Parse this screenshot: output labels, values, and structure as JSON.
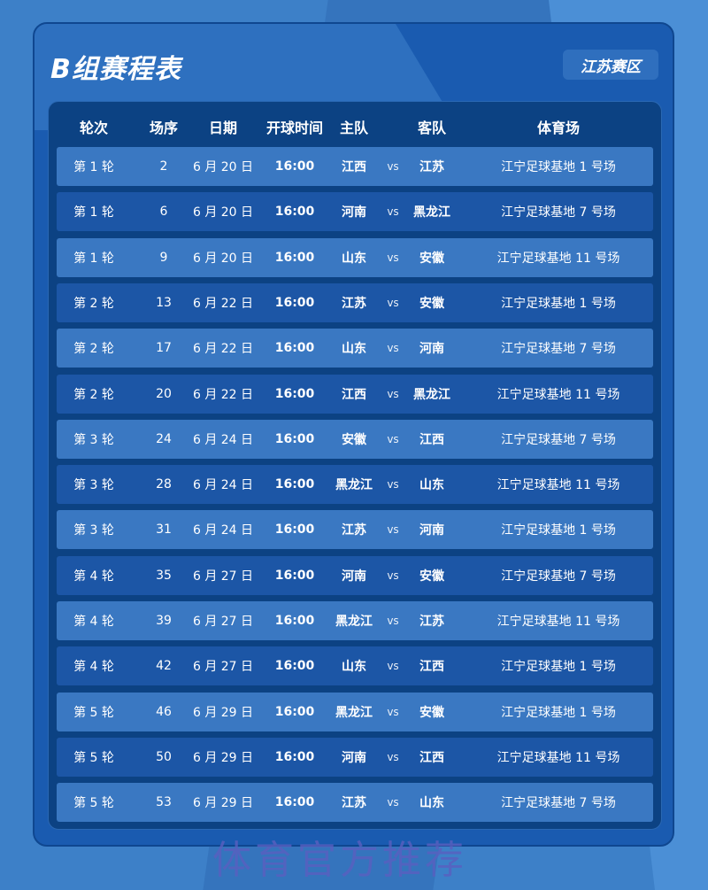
{
  "title": "B组赛程表",
  "region": "江苏赛区",
  "headers": {
    "round": "轮次",
    "seq": "场序",
    "date": "日期",
    "time": "开球时间",
    "home": "主队",
    "away": "客队",
    "venue": "体育场"
  },
  "vs": "vs",
  "rows": [
    [
      "第 1 轮",
      "2",
      "6 月 20 日",
      "16:00",
      "江西",
      "江苏",
      "江宁足球基地 1 号场"
    ],
    [
      "第 1 轮",
      "6",
      "6 月 20 日",
      "16:00",
      "河南",
      "黑龙江",
      "江宁足球基地 7 号场"
    ],
    [
      "第 1 轮",
      "9",
      "6 月 20 日",
      "16:00",
      "山东",
      "安徽",
      "江宁足球基地 11 号场"
    ],
    [
      "第 2 轮",
      "13",
      "6 月 22 日",
      "16:00",
      "江苏",
      "安徽",
      "江宁足球基地 1 号场"
    ],
    [
      "第 2 轮",
      "17",
      "6 月 22 日",
      "16:00",
      "山东",
      "河南",
      "江宁足球基地 7 号场"
    ],
    [
      "第 2 轮",
      "20",
      "6 月 22 日",
      "16:00",
      "江西",
      "黑龙江",
      "江宁足球基地 11 号场"
    ],
    [
      "第 3 轮",
      "24",
      "6 月 24 日",
      "16:00",
      "安徽",
      "江西",
      "江宁足球基地 7 号场"
    ],
    [
      "第 3 轮",
      "28",
      "6 月 24 日",
      "16:00",
      "黑龙江",
      "山东",
      "江宁足球基地 11 号场"
    ],
    [
      "第 3 轮",
      "31",
      "6 月 24 日",
      "16:00",
      "江苏",
      "河南",
      "江宁足球基地 1 号场"
    ],
    [
      "第 4 轮",
      "35",
      "6 月 27 日",
      "16:00",
      "河南",
      "安徽",
      "江宁足球基地 7 号场"
    ],
    [
      "第 4 轮",
      "39",
      "6 月 27 日",
      "16:00",
      "黑龙江",
      "江苏",
      "江宁足球基地 11 号场"
    ],
    [
      "第 4 轮",
      "42",
      "6 月 27 日",
      "16:00",
      "山东",
      "江西",
      "江宁足球基地 1 号场"
    ],
    [
      "第 5 轮",
      "46",
      "6 月 29 日",
      "16:00",
      "黑龙江",
      "安徽",
      "江宁足球基地 1 号场"
    ],
    [
      "第 5 轮",
      "50",
      "6 月 29 日",
      "16:00",
      "河南",
      "江西",
      "江宁足球基地 11 号场"
    ],
    [
      "第 5 轮",
      "53",
      "6 月 29 日",
      "16:00",
      "江苏",
      "山东",
      "江宁足球基地 7 号场"
    ]
  ],
  "watermark": "体育官方推荐"
}
